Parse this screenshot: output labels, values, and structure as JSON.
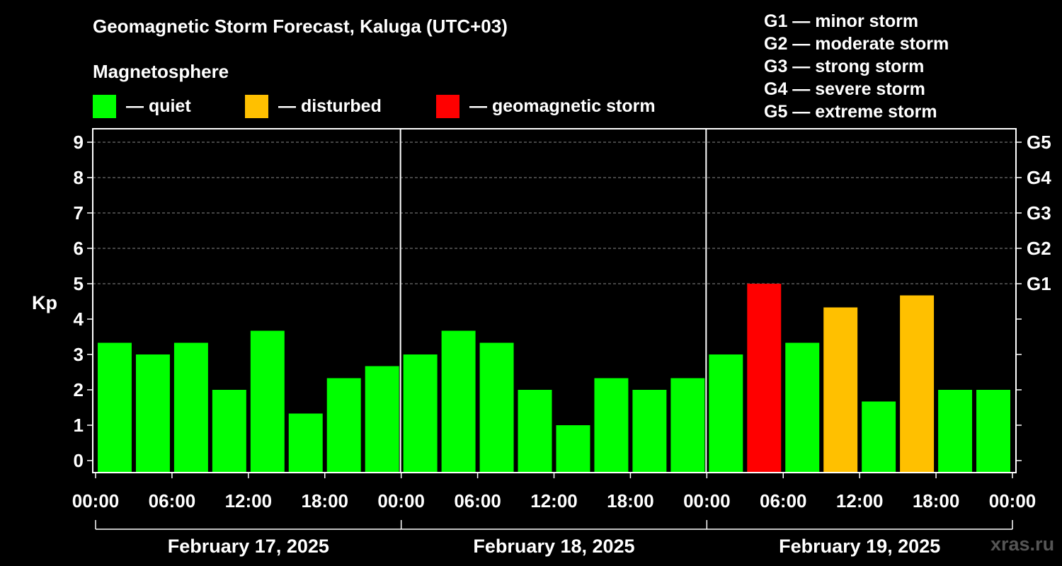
{
  "header": {
    "title": "Geomagnetic Storm Forecast, Kaluga (UTC+03)",
    "subtitle": "Magnetosphere"
  },
  "legend": [
    {
      "label": "— quiet",
      "color": "#00ff00"
    },
    {
      "label": "— disturbed",
      "color": "#ffc000"
    },
    {
      "label": "— geomagnetic storm",
      "color": "#ff0000"
    }
  ],
  "g_levels": [
    "G1 — minor storm",
    "G2 — moderate storm",
    "G3 — strong storm",
    "G4 — severe storm",
    "G5 — extreme storm"
  ],
  "watermark": "xras.ru",
  "chart_data": {
    "type": "bar",
    "title": "Geomagnetic Storm Forecast, Kaluga (UTC+03)",
    "ylabel": "Kp",
    "ylim": [
      -0.3,
      9.4
    ],
    "y_ticks": [
      "0",
      "1",
      "2",
      "3",
      "4",
      "5",
      "6",
      "7",
      "8",
      "9"
    ],
    "right_ticks": [
      {
        "kp": 5,
        "label": "G1"
      },
      {
        "kp": 6,
        "label": "G2"
      },
      {
        "kp": 7,
        "label": "G3"
      },
      {
        "kp": 8,
        "label": "G4"
      },
      {
        "kp": 9,
        "label": "G5"
      }
    ],
    "x_ticks": [
      "00:00",
      "06:00",
      "12:00",
      "18:00",
      "00:00",
      "06:00",
      "12:00",
      "18:00",
      "00:00",
      "06:00",
      "12:00",
      "18:00",
      "00:00"
    ],
    "days": [
      "February 17, 2025",
      "February 18, 2025",
      "February 19, 2025"
    ],
    "series": [
      {
        "name": "Kp",
        "values": [
          3.33,
          3.0,
          3.33,
          2.0,
          3.67,
          1.33,
          2.33,
          2.67,
          3.0,
          3.67,
          3.33,
          2.0,
          1.0,
          2.33,
          2.0,
          2.33,
          3.0,
          5.0,
          3.33,
          4.33,
          1.67,
          4.67,
          2.0,
          2.0
        ]
      }
    ],
    "colors": {
      "quiet": "#00ff00",
      "disturbed": "#ffc000",
      "storm": "#ff0000"
    },
    "thresholds": {
      "disturbed": 4,
      "storm": 5
    },
    "grid": true
  }
}
